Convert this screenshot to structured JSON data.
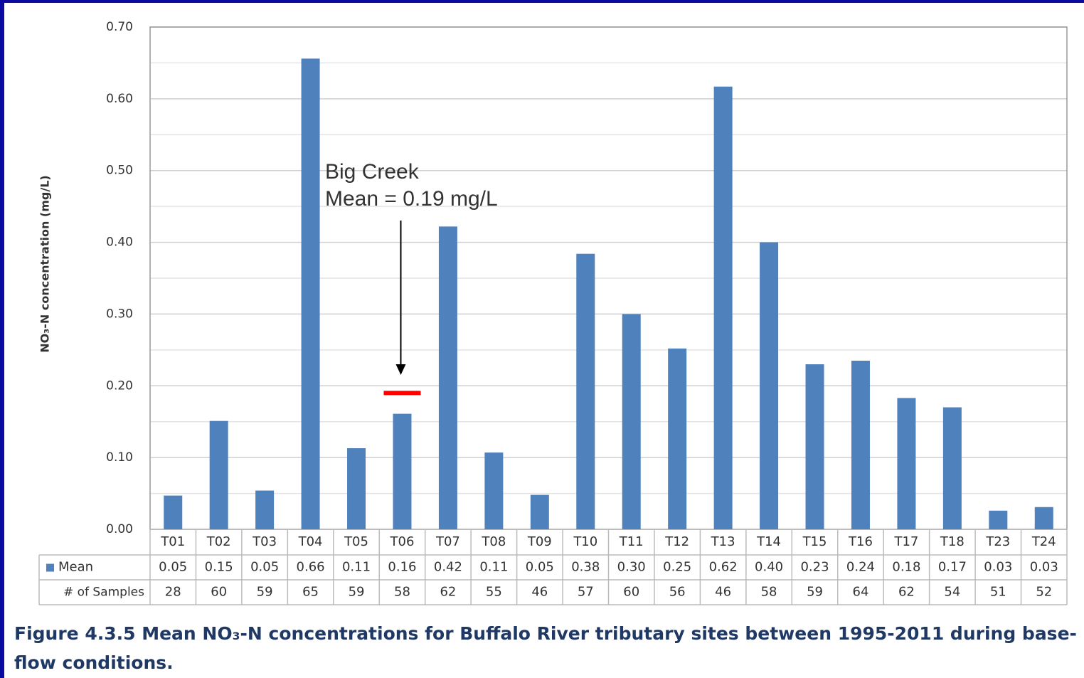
{
  "chart_data": {
    "type": "bar",
    "ylabel": "NO₃-N concentration (mg/L)",
    "categories": [
      "T01",
      "T02",
      "T03",
      "T04",
      "T05",
      "T06",
      "T07",
      "T08",
      "T09",
      "T10",
      "T11",
      "T12",
      "T13",
      "T14",
      "T15",
      "T16",
      "T17",
      "T18",
      "T23",
      "T24"
    ],
    "series": [
      {
        "name": "Mean",
        "color": "#4f81bd",
        "values": [
          0.047,
          0.151,
          0.054,
          0.656,
          0.113,
          0.161,
          0.422,
          0.107,
          0.048,
          0.384,
          0.3,
          0.252,
          0.617,
          0.4,
          0.23,
          0.235,
          0.183,
          0.17,
          0.026,
          0.031
        ],
        "value_labels": [
          "0.05",
          "0.15",
          "0.05",
          "0.66",
          "0.11",
          "0.16",
          "0.42",
          "0.11",
          "0.05",
          "0.38",
          "0.30",
          "0.25",
          "0.62",
          "0.40",
          "0.23",
          "0.24",
          "0.18",
          "0.17",
          "0.03",
          "0.03"
        ]
      }
    ],
    "samples": {
      "name": "# of Samples",
      "values": [
        28,
        60,
        59,
        65,
        59,
        58,
        62,
        55,
        46,
        57,
        60,
        56,
        46,
        58,
        59,
        64,
        62,
        54,
        51,
        52
      ]
    },
    "ylim": [
      0,
      0.7
    ],
    "yticks": [
      {
        "value": 0,
        "label": "0.00"
      },
      {
        "value": 0.1,
        "label": "0.10"
      },
      {
        "value": 0.2,
        "label": "0.20"
      },
      {
        "value": 0.3,
        "label": "0.30"
      },
      {
        "value": 0.4,
        "label": "0.40"
      },
      {
        "value": 0.5,
        "label": "0.50"
      },
      {
        "value": 0.6,
        "label": "0.60"
      },
      {
        "value": 0.7,
        "label": "0.70"
      }
    ],
    "minor_yticks": [
      0.05,
      0.15,
      0.25,
      0.35,
      0.45,
      0.55,
      0.65
    ],
    "grid": true,
    "reference_line": {
      "value": 0.19,
      "category": "T06",
      "color": "#ff0000"
    },
    "annotation": [
      "Big Creek",
      "Mean = 0.19 mg/L"
    ],
    "caption": "Figure 4.3.5 Mean NO₃-N concentrations for Buffalo River tributary sites between 1995-2011 during base-flow conditions."
  }
}
